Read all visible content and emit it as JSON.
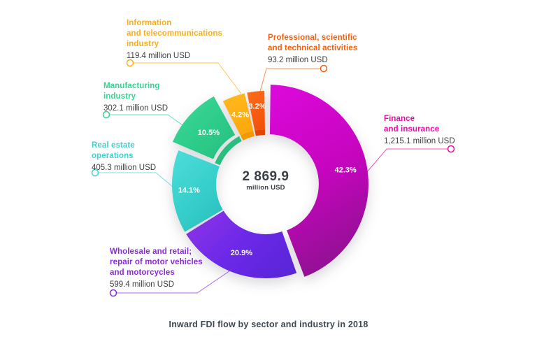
{
  "title": "Inward FDI flow by sector and industry in 2018",
  "center": {
    "total": "2 869.9",
    "unit": "million USD"
  },
  "callouts": [
    {
      "name": "Information\nand telecommunications\nindustry",
      "value": "119.4 million USD",
      "color": "#FBAE17"
    },
    {
      "name": "Professional, scientific\nand technical activities",
      "value": "93.2 million USD",
      "color": "#F4600E"
    },
    {
      "name": "Finance\nand insurance",
      "value": "1,215.1 million USD",
      "color": "#EB0BA4"
    },
    {
      "name": "Manufacturing\nindustry",
      "value": "302.1 million USD",
      "color": "#38D492"
    },
    {
      "name": "Real estate\noperations",
      "value": "405.3 million USD",
      "color": "#41D2CE"
    },
    {
      "name": "Wholesale and retail;\nrepair of motor vehicles\nand motorcycles",
      "value": "599.4 million USD",
      "color": "#8A2BD9"
    }
  ],
  "chart_data": {
    "type": "pie",
    "subtype": "donut",
    "title": "Inward FDI flow by sector and industry in 2018",
    "center_total": {
      "value": 2869.9,
      "label": "2 869.9",
      "unit": "million USD"
    },
    "start_angle_deg": 0,
    "direction": "clockwise",
    "slices": [
      {
        "label": "Finance and insurance",
        "value_million_usd": 1215.1,
        "percent": 42.3,
        "percent_text": "42.3%",
        "gradient": [
          "#DA08D8",
          "#C605BE",
          "#8E1190"
        ],
        "callout_index": 2
      },
      {
        "label": "Wholesale and retail; repair of motor vehicles and motorcycles",
        "value_million_usd": 599.4,
        "percent": 20.9,
        "percent_text": "20.9%",
        "gradient": [
          "#8A33E6",
          "#6B28E8",
          "#5A25D8"
        ],
        "callout_index": 5
      },
      {
        "label": "Real estate operations",
        "value_million_usd": 405.3,
        "percent": 14.1,
        "percent_text": "14.1%",
        "gradient": [
          "#4BDBD7",
          "#38D0CC",
          "#2ABFBF"
        ],
        "callout_index": 4
      },
      {
        "label": "Manufacturing industry",
        "value_million_usd": 302.1,
        "percent": 10.5,
        "percent_text": "10.5%",
        "gradient": [
          "#3FD998",
          "#2ECD8B",
          "#26BE80"
        ],
        "band_color": "#2ABD80",
        "callout_index": 3
      },
      {
        "label": "Information and telecommunications industry",
        "value_million_usd": 119.4,
        "percent": 4.2,
        "percent_text": "4.2%",
        "gradient": [
          "#FFB81F",
          "#FBA70A"
        ],
        "band_color": "#F09A00",
        "callout_index": 0
      },
      {
        "label": "Professional, scientific and technical activities",
        "value_million_usd": 93.2,
        "percent": 3.2,
        "percent_text": "3.2%",
        "gradient": [
          "#FC6B17",
          "#F2500A"
        ],
        "band_color": "#E24606",
        "callout_index": 1
      }
    ],
    "percent_label_color": "#FFFFFF"
  }
}
